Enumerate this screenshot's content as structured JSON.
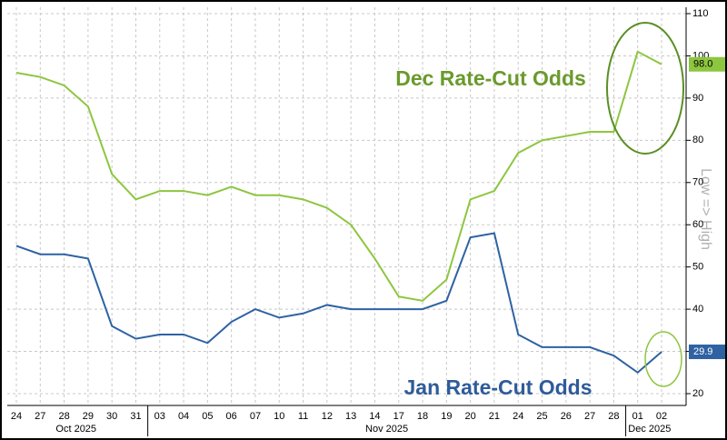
{
  "chart_data": {
    "type": "line",
    "categories": [
      "24",
      "27",
      "28",
      "29",
      "30",
      "31",
      "03",
      "04",
      "05",
      "06",
      "07",
      "10",
      "11",
      "12",
      "13",
      "14",
      "17",
      "18",
      "19",
      "20",
      "21",
      "24",
      "25",
      "26",
      "27",
      "28",
      "01",
      "02"
    ],
    "category_groups": [
      {
        "label": "Oct 2025",
        "count": 6
      },
      {
        "label": "Nov 2025",
        "count": 20
      },
      {
        "label": "Dec 2025",
        "count": 2
      }
    ],
    "series": [
      {
        "name": "Dec Rate-Cut Odds",
        "color": "#8dc63f",
        "label_color": "#6a9a2c",
        "values": [
          96,
          95,
          93,
          88,
          72,
          66,
          68,
          68,
          67,
          69,
          67,
          67,
          66,
          64,
          60,
          52,
          43,
          42,
          47,
          66,
          68,
          77,
          80,
          81,
          82,
          82,
          101,
          98
        ],
        "value_labels": [
          null,
          null,
          null,
          null,
          null,
          null,
          null,
          null,
          null,
          null,
          null,
          null,
          null,
          null,
          null,
          null,
          null,
          null,
          null,
          null,
          null,
          null,
          null,
          null,
          null,
          null,
          null,
          "98.0"
        ]
      },
      {
        "name": "Jan Rate-Cut Odds",
        "color": "#2e62a3",
        "label_color": "#2f5b9a",
        "values": [
          55,
          53,
          53,
          52,
          36,
          33,
          34,
          34,
          32,
          37,
          40,
          38,
          39,
          41,
          40,
          40,
          40,
          40,
          42,
          57,
          58,
          34,
          31,
          31,
          31,
          29,
          25,
          29.9
        ]
      }
    ],
    "y_axis_label": "Low => High",
    "ylim": [
      20,
      110
    ],
    "yticks": [
      20,
      30,
      40,
      50,
      60,
      70,
      80,
      90,
      100,
      110
    ],
    "grid": true
  }
}
